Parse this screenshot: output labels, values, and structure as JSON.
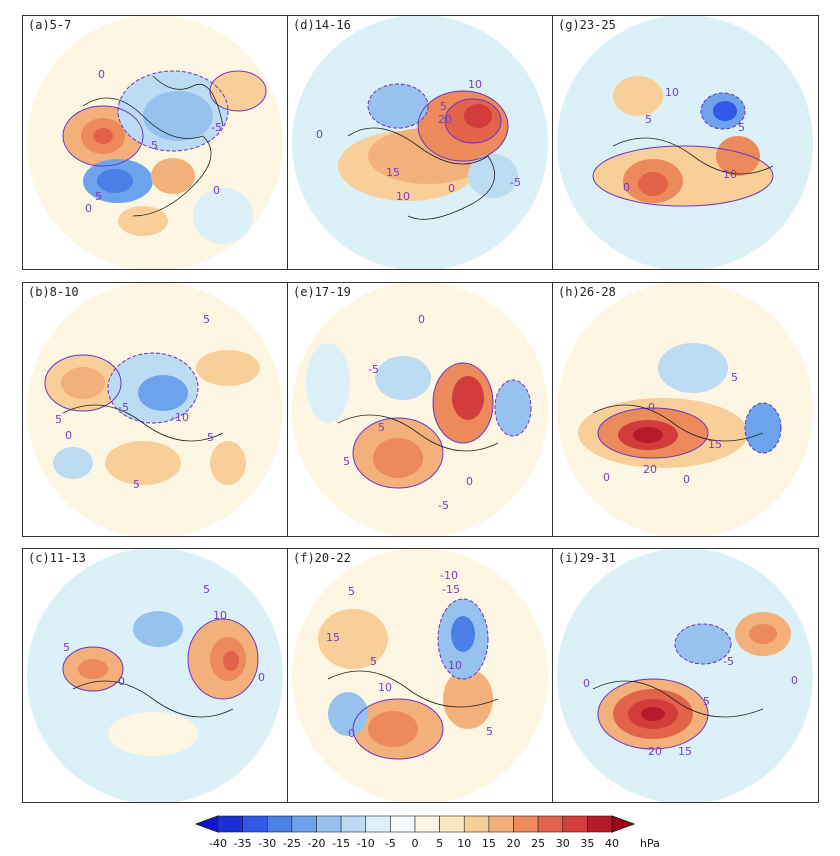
{
  "colors": {
    "levels": [
      -40,
      -35,
      -30,
      -25,
      -20,
      -15,
      -10,
      -5,
      0,
      5,
      10,
      15,
      20,
      25,
      30,
      35,
      40
    ],
    "fills": [
      "#1a2fd6",
      "#2f58e8",
      "#4a7fe6",
      "#6da3ec",
      "#97c2f0",
      "#bcdcf3",
      "#dcf0f8",
      "#f6fbfd",
      "#fdf6e3",
      "#fbe6c2",
      "#f8cf99",
      "#f3b07a",
      "#ec8a5c",
      "#e2634a",
      "#d23c3a",
      "#b61a2b"
    ],
    "contour": "#6a34c8"
  },
  "panels": [
    {
      "label": "(a)5-7",
      "contour_labels": [
        "0",
        "-5",
        "5",
        "5",
        "0",
        "0"
      ]
    },
    {
      "label": "(d)14-16",
      "contour_labels": [
        "0",
        "5",
        "20",
        "10",
        "15",
        "10",
        "0",
        "-5"
      ]
    },
    {
      "label": "(g)23-25",
      "contour_labels": [
        "10",
        "5",
        "5",
        "10",
        "0"
      ]
    },
    {
      "label": "(b)8-10",
      "contour_labels": [
        "5",
        "-5",
        "-10",
        "5",
        "0",
        "5",
        "5"
      ]
    },
    {
      "label": "(e)17-19",
      "contour_labels": [
        "0",
        "-5",
        "5",
        "5",
        "0",
        "-5"
      ]
    },
    {
      "label": "(h)26-28",
      "contour_labels": [
        "0",
        "5",
        "15",
        "20",
        "0",
        "0"
      ]
    },
    {
      "label": "(c)11-13",
      "contour_labels": [
        "5",
        "10",
        "0",
        "0",
        "5"
      ]
    },
    {
      "label": "(f)20-22",
      "contour_labels": [
        "5",
        "-10",
        "-15",
        "15",
        "5",
        "10",
        "10",
        "0",
        "5"
      ]
    },
    {
      "label": "(i)29-31",
      "contour_labels": [
        "0",
        "5",
        "20",
        "15",
        "0",
        "-5"
      ]
    }
  ],
  "colorbar": {
    "tick_labels": [
      "-40",
      "-35",
      "-30",
      "-25",
      "-20",
      "-15",
      "-10",
      "-5",
      "0",
      "5",
      "10",
      "15",
      "20",
      "25",
      "30",
      "35",
      "40"
    ],
    "unit": "hPa"
  }
}
